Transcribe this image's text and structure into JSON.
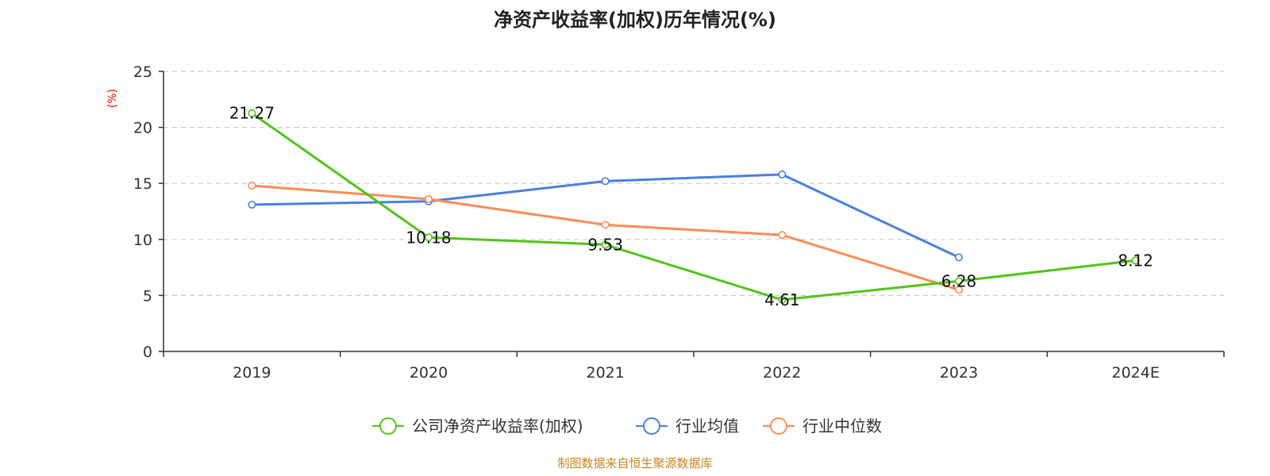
{
  "chart_data": {
    "type": "line",
    "title": "净资产收益率(加权)历年情况(%)",
    "ylabel": "(%)",
    "xlabel": "",
    "categories": [
      "2019",
      "2020",
      "2021",
      "2022",
      "2023",
      "2024E"
    ],
    "ylim": [
      0,
      25
    ],
    "yticks": [
      0,
      5,
      10,
      15,
      20,
      25
    ],
    "grid": true,
    "legend_position": "bottom-center",
    "series": [
      {
        "name": "公司净资产收益率(加权)",
        "color": "#52c41a",
        "values": [
          21.27,
          10.18,
          9.53,
          4.61,
          6.28,
          8.12
        ],
        "labels": [
          "21.27",
          "10.18",
          "9.53",
          "4.61",
          "6.28",
          "8.12"
        ]
      },
      {
        "name": "行业均值",
        "color": "#4a7fe0",
        "values": [
          13.1,
          13.4,
          15.2,
          15.8,
          8.4,
          null
        ]
      },
      {
        "name": "行业中位数",
        "color": "#ff8c55",
        "values": [
          14.8,
          13.6,
          11.3,
          10.4,
          5.5,
          null
        ]
      }
    ]
  },
  "colors": {
    "unit_label": "#ff0000",
    "source": "#c8861d",
    "axis": "#333333",
    "grid": "#cccccc"
  },
  "source_text": "制图数据来自恒生聚源数据库"
}
